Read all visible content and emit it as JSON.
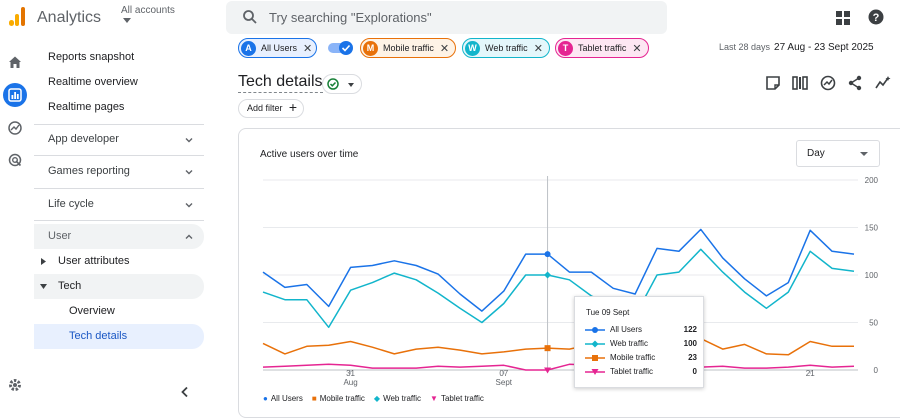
{
  "app": {
    "title": "Analytics",
    "account_label": "All accounts"
  },
  "search": {
    "placeholder": "Try searching \"Explorations\""
  },
  "sidebar": {
    "items": [
      {
        "label": "Reports snapshot"
      },
      {
        "label": "Realtime overview"
      },
      {
        "label": "Realtime pages"
      },
      {
        "label": "App developer"
      },
      {
        "label": "Games reporting"
      },
      {
        "label": "Life cycle"
      },
      {
        "label": "User"
      },
      {
        "label": "User attributes"
      },
      {
        "label": "Tech"
      },
      {
        "label": "Overview"
      },
      {
        "label": "Tech details"
      }
    ]
  },
  "comparisons": [
    {
      "letter": "A",
      "label": "All Users",
      "color": "#1a73e8"
    },
    {
      "letter": "M",
      "label": "Mobile traffic",
      "color": "#e8710a"
    },
    {
      "letter": "W",
      "label": "Web traffic",
      "color": "#12b5cb"
    },
    {
      "letter": "T",
      "label": "Tablet traffic",
      "color": "#e52592"
    }
  ],
  "date_range": {
    "prefix": "Last 28 days",
    "range": "27 Aug - 23 Sept 2025"
  },
  "page": {
    "title": "Tech details",
    "add_filter": "Add filter"
  },
  "card": {
    "title": "Active users over time",
    "granularity": "Day"
  },
  "tooltip": {
    "date": "Tue 09 Sept",
    "rows": [
      {
        "label": "All Users",
        "value": "122",
        "color": "#1a73e8"
      },
      {
        "label": "Web traffic",
        "value": "100",
        "color": "#12b5cb"
      },
      {
        "label": "Mobile traffic",
        "value": "23",
        "color": "#e8710a"
      },
      {
        "label": "Tablet traffic",
        "value": "0",
        "color": "#e52592"
      }
    ]
  },
  "chart_data": {
    "type": "line",
    "title": "Active users over time",
    "x": [
      "27 Aug",
      "28 Aug",
      "29 Aug",
      "30 Aug",
      "31 Aug",
      "01 Sept",
      "02 Sept",
      "03 Sept",
      "04 Sept",
      "05 Sept",
      "06 Sept",
      "07 Sept",
      "08 Sept",
      "09 Sept",
      "10 Sept",
      "11 Sept",
      "12 Sept",
      "13 Sept",
      "14 Sept",
      "15 Sept",
      "16 Sept",
      "17 Sept",
      "18 Sept",
      "19 Sept",
      "20 Sept",
      "21 Sept",
      "22 Sept",
      "23 Sept"
    ],
    "x_tick_labels": [
      {
        "x": "31 Aug",
        "label": "31",
        "sub": "Aug"
      },
      {
        "x": "07 Sept",
        "label": "07",
        "sub": "Sept"
      },
      {
        "x": "14 Sept",
        "label": "14",
        "sub": ""
      },
      {
        "x": "21 Sept",
        "label": "21",
        "sub": ""
      }
    ],
    "y_ticks": [
      0,
      50,
      100,
      150,
      200
    ],
    "ylim": [
      0,
      200
    ],
    "grid": true,
    "legend_position": "bottom-left",
    "series": [
      {
        "name": "All Users",
        "color": "#1a73e8",
        "marker": "circle",
        "values": [
          103,
          87,
          90,
          67,
          108,
          110,
          115,
          110,
          101,
          80,
          62,
          83,
          122,
          122,
          103,
          103,
          86,
          80,
          128,
          125,
          148,
          118,
          96,
          78,
          92,
          147,
          125,
          122
        ]
      },
      {
        "name": "Mobile traffic",
        "color": "#e8710a",
        "marker": "square",
        "values": [
          28,
          17,
          25,
          26,
          30,
          24,
          17,
          22,
          24,
          21,
          17,
          19,
          22,
          23,
          22,
          27,
          24,
          25,
          28,
          20,
          33,
          22,
          27,
          17,
          16,
          30,
          25,
          25
        ]
      },
      {
        "name": "Web traffic",
        "color": "#12b5cb",
        "marker": "diamond",
        "values": [
          82,
          74,
          74,
          45,
          84,
          92,
          102,
          95,
          81,
          65,
          50,
          70,
          100,
          100,
          95,
          78,
          68,
          57,
          100,
          103,
          127,
          103,
          82,
          65,
          82,
          125,
          107,
          104
        ]
      },
      {
        "name": "Tablet traffic",
        "color": "#e52592",
        "marker": "triangle",
        "values": [
          3,
          4,
          5,
          6,
          5,
          2,
          2,
          2,
          4,
          3,
          4,
          5,
          0,
          0,
          6,
          5,
          4,
          3,
          4,
          2,
          3,
          4,
          2,
          2,
          3,
          5,
          3,
          4
        ]
      }
    ]
  }
}
